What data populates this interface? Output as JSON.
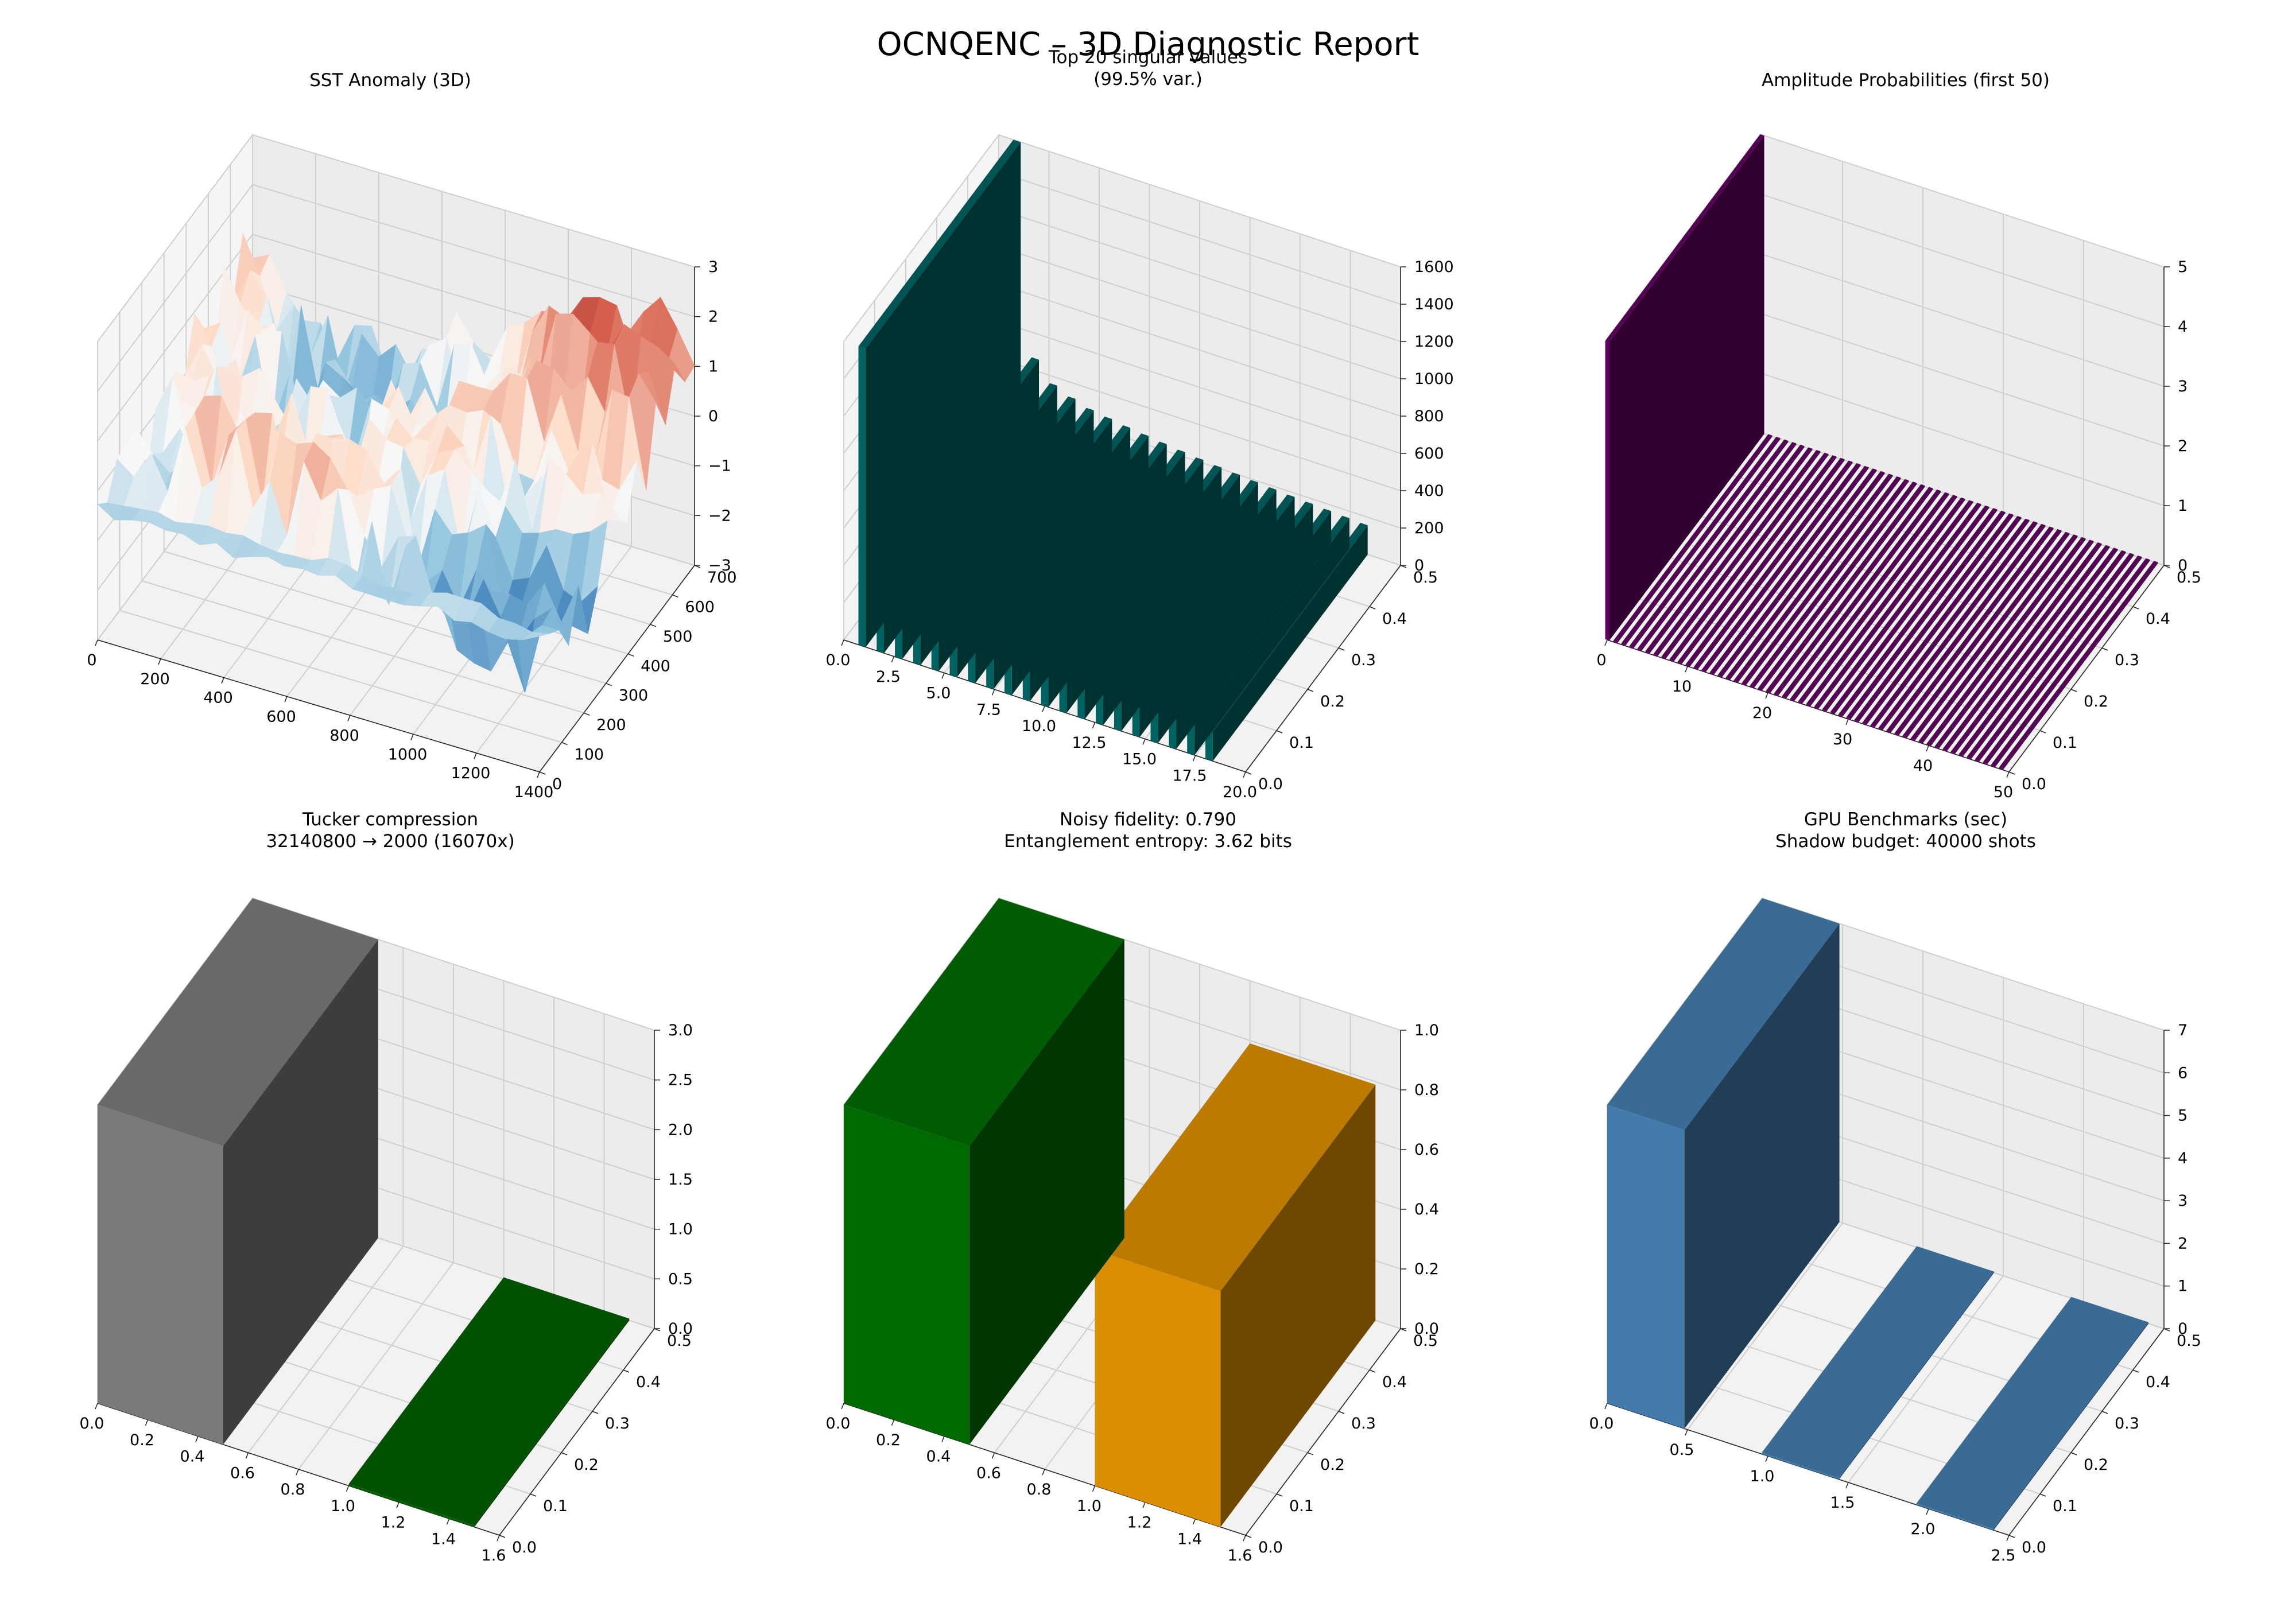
{
  "figure": {
    "suptitle": "OCNQENC – 3D Diagnostic Report"
  },
  "chart_data": [
    {
      "id": "sst",
      "type": "surface",
      "title": "SST Anomaly (3D)",
      "colormap": "RdBu_r",
      "x_range": [
        0,
        1440
      ],
      "y_range": [
        0,
        720
      ],
      "z_range": [
        -3,
        3
      ],
      "x_ticks": [
        "0",
        "200",
        "400",
        "600",
        "800",
        "1000",
        "1200",
        "1400"
      ],
      "y_ticks": [
        "0",
        "100",
        "200",
        "300",
        "400",
        "500",
        "600",
        "700"
      ],
      "z_ticks": [
        "−3",
        "−2",
        "−1",
        "0",
        "1",
        "2",
        "3"
      ],
      "z_approx_min": -3.4,
      "z_approx_max": 2.6
    },
    {
      "id": "svd",
      "type": "bar3d",
      "title": "Top 20 singular values\n(99.5% var.)",
      "color": "#006666",
      "x": [
        1,
        2,
        3,
        4,
        5,
        6,
        7,
        8,
        9,
        10,
        11,
        12,
        13,
        14,
        15,
        16,
        17,
        18,
        19,
        20
      ],
      "values": [
        1650,
        480,
        370,
        330,
        300,
        285,
        270,
        258,
        246,
        235,
        225,
        216,
        208,
        200,
        193,
        186,
        180,
        174,
        168,
        162
      ],
      "x_ticks": [
        "0.0",
        "2.5",
        "5.0",
        "7.5",
        "10.0",
        "12.5",
        "15.0",
        "17.5",
        "20.0"
      ],
      "y_ticks": [
        "0.0",
        "0.1",
        "0.2",
        "0.3",
        "0.4",
        "0.5"
      ],
      "z_ticks": [
        "0",
        "200",
        "400",
        "600",
        "800",
        "1000",
        "1200",
        "1400",
        "1600"
      ],
      "zlim": [
        0,
        1650
      ]
    },
    {
      "id": "amp",
      "type": "bar3d",
      "title": "Amplitude Probabilities (first 50)",
      "color": "#660066",
      "x": [
        0,
        1,
        2,
        3,
        4,
        5,
        6,
        7,
        8,
        9,
        10,
        11,
        12,
        13,
        14,
        15,
        16,
        17,
        18,
        19,
        20,
        21,
        22,
        23,
        24,
        25,
        26,
        27,
        28,
        29,
        30,
        31,
        32,
        33,
        34,
        35,
        36,
        37,
        38,
        39,
        40,
        41,
        42,
        43,
        44,
        45,
        46,
        47,
        48,
        49
      ],
      "values": [
        5.2,
        0.02,
        0.02,
        0.02,
        0.02,
        0.02,
        0.02,
        0.02,
        0.02,
        0.02,
        0.02,
        0.02,
        0.02,
        0.02,
        0.02,
        0.02,
        0.02,
        0.02,
        0.02,
        0.02,
        0.02,
        0.02,
        0.02,
        0.02,
        0.02,
        0.02,
        0.02,
        0.02,
        0.02,
        0.02,
        0.02,
        0.02,
        0.02,
        0.02,
        0.02,
        0.02,
        0.02,
        0.02,
        0.02,
        0.02,
        0.02,
        0.02,
        0.02,
        0.02,
        0.02,
        0.02,
        0.02,
        0.02,
        0.02,
        0.02
      ],
      "x_ticks": [
        "0",
        "10",
        "20",
        "30",
        "40",
        "50"
      ],
      "y_ticks": [
        "0.0",
        "0.1",
        "0.2",
        "0.3",
        "0.4",
        "0.5"
      ],
      "z_ticks": [
        "0",
        "1",
        "2",
        "3",
        "4",
        "5"
      ],
      "zlim": [
        0,
        5.2
      ]
    },
    {
      "id": "tucker",
      "type": "bar3d",
      "title": "Tucker compression\n32140800 → 2000 (16070x)",
      "categories": [
        "0",
        "1"
      ],
      "values": [
        3.3,
        0.02
      ],
      "colors": [
        "#808080",
        "#006400"
      ],
      "x_ticks": [
        "0.0",
        "0.2",
        "0.4",
        "0.6",
        "0.8",
        "1.0",
        "1.2",
        "1.4",
        "1.6"
      ],
      "y_ticks": [
        "0.0",
        "0.1",
        "0.2",
        "0.3",
        "0.4",
        "0.5"
      ],
      "z_ticks": [
        "0.0",
        "0.5",
        "1.0",
        "1.5",
        "2.0",
        "2.5",
        "3.0"
      ],
      "zlim": [
        0,
        3.3
      ]
    },
    {
      "id": "fidelity",
      "type": "bar3d",
      "title": "Noisy fidelity: 0.790\nEntanglement entropy: 3.62 bits",
      "categories": [
        "0",
        "1"
      ],
      "values": [
        1.0,
        0.79
      ],
      "colors": [
        "#007000",
        "#e69500"
      ],
      "x_ticks": [
        "0.0",
        "0.2",
        "0.4",
        "0.6",
        "0.8",
        "1.0",
        "1.2",
        "1.4",
        "1.6"
      ],
      "y_ticks": [
        "0.0",
        "0.1",
        "0.2",
        "0.3",
        "0.4",
        "0.5"
      ],
      "z_ticks": [
        "0.0",
        "0.2",
        "0.4",
        "0.6",
        "0.8",
        "1.0"
      ],
      "zlim": [
        0,
        1.0
      ]
    },
    {
      "id": "gpu",
      "type": "bar3d",
      "title": "GPU Benchmarks (sec)\nShadow budget: 40000 shots",
      "categories": [
        "0",
        "1",
        "2"
      ],
      "values": [
        7.0,
        0.03,
        0.03
      ],
      "colors": [
        "#4682b4",
        "#4682b4",
        "#4682b4"
      ],
      "x_ticks": [
        "0.0",
        "0.5",
        "1.0",
        "1.5",
        "2.0",
        "2.5"
      ],
      "y_ticks": [
        "0.0",
        "0.1",
        "0.2",
        "0.3",
        "0.4",
        "0.5"
      ],
      "z_ticks": [
        "0",
        "1",
        "2",
        "3",
        "4",
        "5",
        "6",
        "7"
      ],
      "zlim": [
        0,
        7.0
      ]
    }
  ]
}
